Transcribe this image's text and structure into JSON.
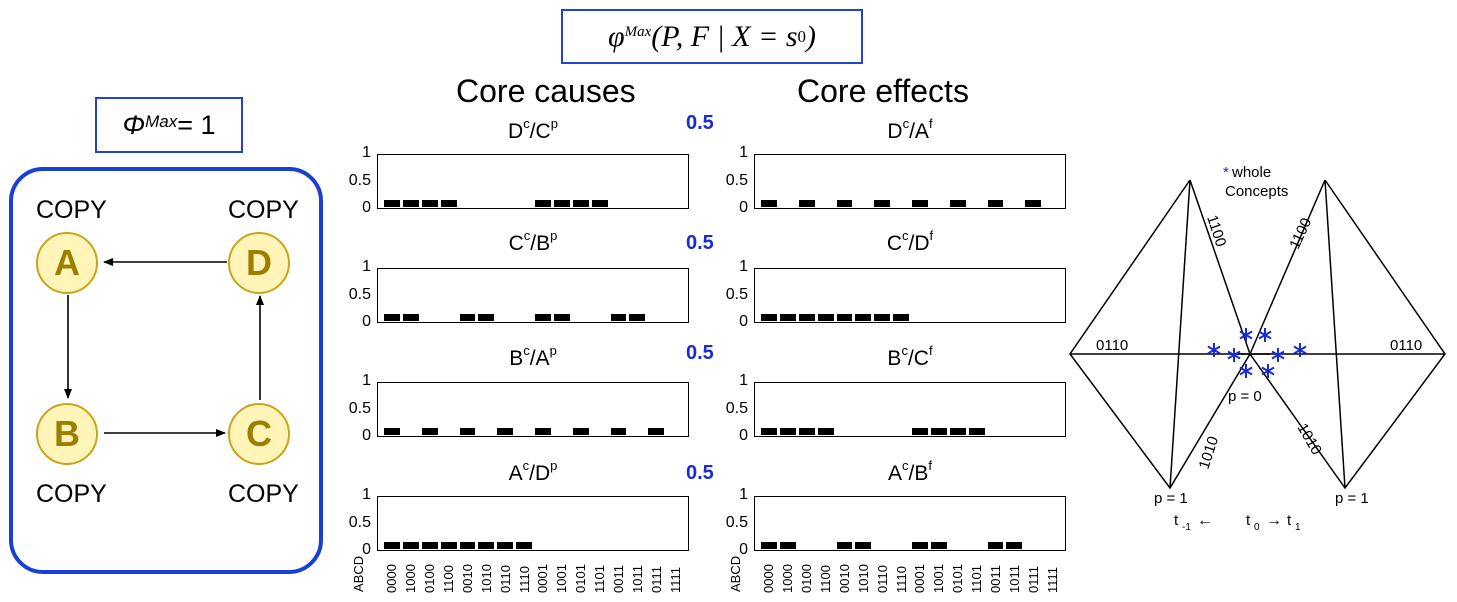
{
  "formula": {
    "phi": "φ",
    "sup": "Max",
    "args": "(P, F | X = s",
    "sub": "0",
    "close": ")"
  },
  "phi_max": {
    "symbol": "Φ",
    "sup": "Max",
    "rest": " = 1"
  },
  "network": {
    "nodes": [
      {
        "id": "A",
        "label": "A",
        "gate": "COPY"
      },
      {
        "id": "D",
        "label": "D",
        "gate": "COPY"
      },
      {
        "id": "B",
        "label": "B",
        "gate": "COPY"
      },
      {
        "id": "C",
        "label": "C",
        "gate": "COPY"
      }
    ],
    "edges": [
      [
        "D",
        "A"
      ],
      [
        "A",
        "B"
      ],
      [
        "B",
        "C"
      ],
      [
        "C",
        "D"
      ]
    ]
  },
  "core_causes_title": "Core causes",
  "core_effects_title": "Core effects",
  "y_ticks": [
    "1",
    "0.5",
    "0"
  ],
  "x_axis_label": "ABCD",
  "states": [
    "0000",
    "1000",
    "0100",
    "1100",
    "0010",
    "1010",
    "0110",
    "1110",
    "0001",
    "1001",
    "0101",
    "1101",
    "0011",
    "1011",
    "0111",
    "1111"
  ],
  "phi_values": [
    "0.5",
    "0.5",
    "0.5",
    "0.5"
  ],
  "chart_data": [
    {
      "type": "bar",
      "panel": "cause",
      "title_main": "D",
      "title_sup1": "c",
      "title_mid": "/C",
      "title_sup2": "p",
      "categories_ref": "states",
      "values": [
        0.125,
        0.125,
        0.125,
        0.125,
        0,
        0,
        0,
        0,
        0.125,
        0.125,
        0.125,
        0.125,
        0,
        0,
        0,
        0
      ],
      "ylim": [
        0,
        1
      ]
    },
    {
      "type": "bar",
      "panel": "cause",
      "title_main": "C",
      "title_sup1": "c",
      "title_mid": "/B",
      "title_sup2": "p",
      "categories_ref": "states",
      "values": [
        0.125,
        0.125,
        0,
        0,
        0.125,
        0.125,
        0,
        0,
        0.125,
        0.125,
        0,
        0,
        0.125,
        0.125,
        0,
        0
      ],
      "ylim": [
        0,
        1
      ]
    },
    {
      "type": "bar",
      "panel": "cause",
      "title_main": "B",
      "title_sup1": "c",
      "title_mid": "/A",
      "title_sup2": "p",
      "categories_ref": "states",
      "values": [
        0.125,
        0,
        0.125,
        0,
        0.125,
        0,
        0.125,
        0,
        0.125,
        0,
        0.125,
        0,
        0.125,
        0,
        0.125,
        0
      ],
      "ylim": [
        0,
        1
      ]
    },
    {
      "type": "bar",
      "panel": "cause",
      "title_main": "A",
      "title_sup1": "c",
      "title_mid": "/D",
      "title_sup2": "p",
      "categories_ref": "states",
      "values": [
        0.125,
        0.125,
        0.125,
        0.125,
        0.125,
        0.125,
        0.125,
        0.125,
        0,
        0,
        0,
        0,
        0,
        0,
        0,
        0
      ],
      "ylim": [
        0,
        1
      ]
    },
    {
      "type": "bar",
      "panel": "effect",
      "title_main": "D",
      "title_sup1": "c",
      "title_mid": "/A",
      "title_sup2": "f",
      "categories_ref": "states",
      "values": [
        0.125,
        0,
        0.125,
        0,
        0.125,
        0,
        0.125,
        0,
        0.125,
        0,
        0.125,
        0,
        0.125,
        0,
        0.125,
        0
      ],
      "ylim": [
        0,
        1
      ]
    },
    {
      "type": "bar",
      "panel": "effect",
      "title_main": "C",
      "title_sup1": "c",
      "title_mid": "/D",
      "title_sup2": "f",
      "categories_ref": "states",
      "values": [
        0.125,
        0.125,
        0.125,
        0.125,
        0.125,
        0.125,
        0.125,
        0.125,
        0,
        0,
        0,
        0,
        0,
        0,
        0,
        0
      ],
      "ylim": [
        0,
        1
      ]
    },
    {
      "type": "bar",
      "panel": "effect",
      "title_main": "B",
      "title_sup1": "c",
      "title_mid": "/C",
      "title_sup2": "f",
      "categories_ref": "states",
      "values": [
        0.125,
        0.125,
        0.125,
        0.125,
        0,
        0,
        0,
        0,
        0.125,
        0.125,
        0.125,
        0.125,
        0,
        0,
        0,
        0
      ],
      "ylim": [
        0,
        1
      ]
    },
    {
      "type": "bar",
      "panel": "effect",
      "title_main": "A",
      "title_sup1": "c",
      "title_mid": "/B",
      "title_sup2": "f",
      "categories_ref": "states",
      "values": [
        0.125,
        0.125,
        0,
        0,
        0.125,
        0.125,
        0,
        0,
        0.125,
        0.125,
        0,
        0,
        0.125,
        0.125,
        0,
        0
      ],
      "ylim": [
        0,
        1
      ]
    }
  ],
  "concept_space": {
    "legend_star": "*",
    "legend_text_1": " whole",
    "legend_text_2": "Concepts",
    "edge_1100": "1100",
    "edge_0110": "0110",
    "edge_1010": "1010",
    "p0": "p = 0",
    "p1": "p = 1",
    "t_minus": "t",
    "t_minus_sub": "-1",
    "t0": "t",
    "t0_sub": "0",
    "t1": "t",
    "t1_sub": "1",
    "arrow_left": "←",
    "arrow_right": "→",
    "star_color": "#1a2bd6"
  }
}
